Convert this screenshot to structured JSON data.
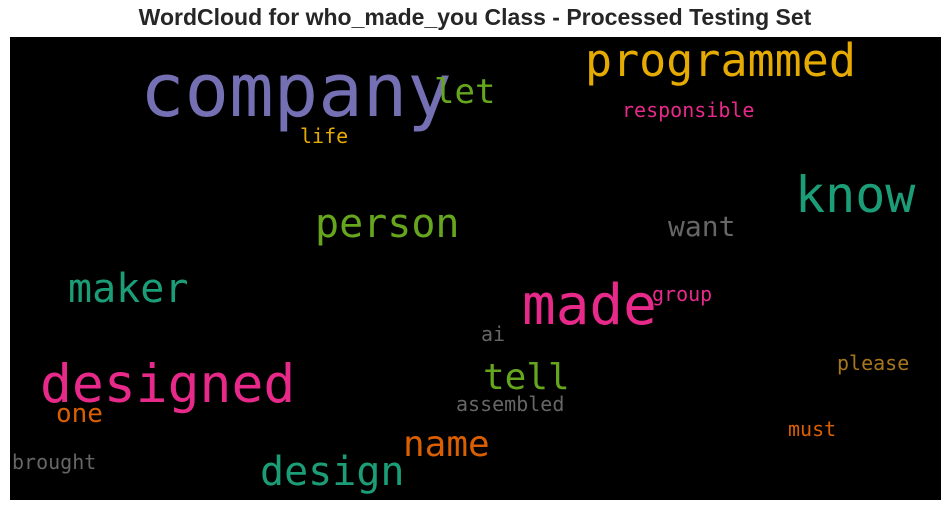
{
  "title": "WordCloud for who_made_you Class - Processed Testing Set",
  "words": [
    {
      "text": "company",
      "color": "#7570b3"
    },
    {
      "text": "programmed",
      "color": "#e6ab02"
    },
    {
      "text": "let",
      "color": "#66a61e"
    },
    {
      "text": "responsible",
      "color": "#e7298a"
    },
    {
      "text": "life",
      "color": "#e6ab02"
    },
    {
      "text": "know",
      "color": "#1b9e77"
    },
    {
      "text": "person",
      "color": "#66a61e"
    },
    {
      "text": "want",
      "color": "#666666"
    },
    {
      "text": "maker",
      "color": "#1b9e77"
    },
    {
      "text": "made",
      "color": "#e7298a"
    },
    {
      "text": "group",
      "color": "#e7298a"
    },
    {
      "text": "ai",
      "color": "#666666"
    },
    {
      "text": "designed",
      "color": "#e7298a"
    },
    {
      "text": "tell",
      "color": "#66a61e"
    },
    {
      "text": "please",
      "color": "#a6761d"
    },
    {
      "text": "one",
      "color": "#d95f02"
    },
    {
      "text": "assembled",
      "color": "#666666"
    },
    {
      "text": "name",
      "color": "#d95f02"
    },
    {
      "text": "must",
      "color": "#d95f02"
    },
    {
      "text": "design",
      "color": "#1b9e77"
    },
    {
      "text": "brought",
      "color": "#666666"
    }
  ]
}
